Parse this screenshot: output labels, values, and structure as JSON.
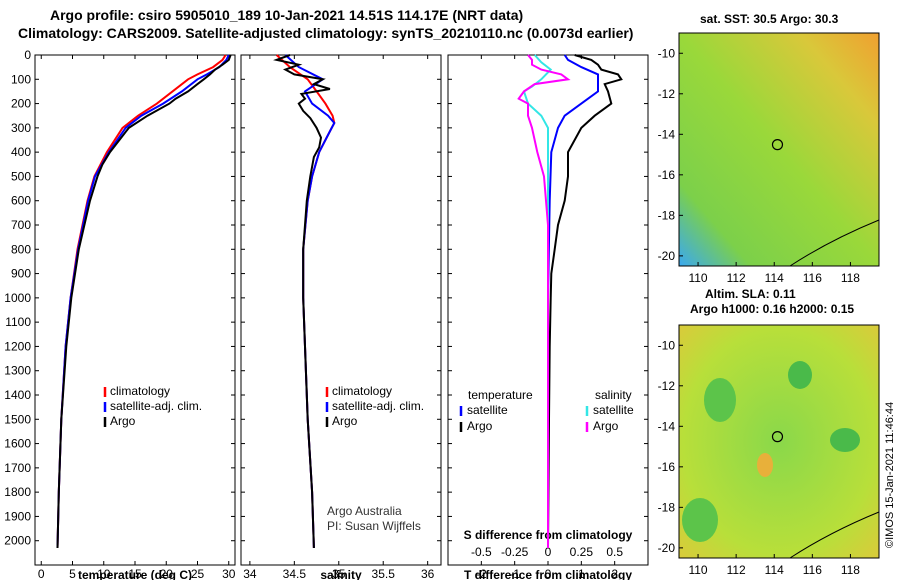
{
  "header": {
    "line1": "Argo profile: csiro 5905010_189 10-Jan-2021 14.51S 114.17E (NRT data)",
    "line2": "Climatology: CARS2009. Satellite-adjusted climatology: synTS_20210110.nc (0.0073d earlier)"
  },
  "maps": {
    "sst_title": "sat. SST: 30.5 Argo: 30.3",
    "sla_title1": "Altim. SLA: 0.11",
    "sla_title2": "Argo h1000: 0.16 h2000: 0.15",
    "lon_ticks": [
      "110",
      "112",
      "114",
      "116",
      "118"
    ],
    "lat_ticks": [
      "-10",
      "-12",
      "-14",
      "-16",
      "-18",
      "-20"
    ],
    "marker_lon": 114.17,
    "marker_lat": -14.51
  },
  "footer": {
    "imos_stamp": "©IMOS 15-Jan-2021 11:46:44"
  },
  "colors": {
    "red": "#ff0000",
    "blue": "#0000ff",
    "black": "#000000",
    "cyan": "#33e6e6",
    "magenta": "#ff00ff"
  },
  "chart_data": [
    {
      "type": "line",
      "xlabel": "temperature (deg C)",
      "ylim": [
        2100,
        0
      ],
      "xlim": [
        -1,
        31
      ],
      "xticks": [
        "0",
        "5",
        "10",
        "15",
        "20",
        "25",
        "30"
      ],
      "yticks": [
        "0",
        "100",
        "200",
        "300",
        "400",
        "500",
        "600",
        "700",
        "800",
        "900",
        "1000",
        "1100",
        "1200",
        "1300",
        "1400",
        "1500",
        "1600",
        "1700",
        "1800",
        "1900",
        "2000"
      ],
      "legend": [
        "climatology",
        "satellite-adj. clim.",
        "Argo"
      ],
      "series": [
        {
          "name": "climatology",
          "color": "red",
          "depth": [
            0,
            20,
            50,
            80,
            100,
            150,
            200,
            250,
            300,
            400,
            500,
            600,
            800,
            1000,
            1200,
            1500,
            1800,
            2030
          ],
          "values": [
            29.5,
            29,
            27.5,
            25,
            23.5,
            21,
            18.5,
            15.5,
            13,
            10.5,
            8.5,
            7.4,
            5.8,
            4.7,
            3.9,
            3.2,
            2.8,
            2.6
          ]
        },
        {
          "name": "satellite-adj. clim.",
          "color": "blue",
          "depth": [
            0,
            20,
            50,
            80,
            100,
            150,
            200,
            250,
            300,
            400,
            500,
            600,
            800,
            1000,
            1200,
            1500,
            1800,
            2030
          ],
          "values": [
            30,
            29.6,
            28.5,
            26.5,
            25,
            22.5,
            19.5,
            16,
            13.5,
            10.8,
            8.6,
            7.5,
            5.9,
            4.7,
            3.9,
            3.2,
            2.8,
            2.6
          ]
        },
        {
          "name": "Argo",
          "color": "black",
          "depth": [
            0,
            20,
            40,
            60,
            80,
            100,
            120,
            150,
            180,
            200,
            250,
            300,
            350,
            400,
            450,
            500,
            600,
            800,
            1000,
            1200,
            1500,
            1800,
            2030
          ],
          "values": [
            30.3,
            30,
            29,
            27.8,
            27,
            26,
            25,
            23.5,
            21.5,
            20.5,
            17,
            14,
            12.5,
            11,
            9.8,
            9,
            7.8,
            6,
            4.8,
            4,
            3.2,
            2.8,
            2.6
          ]
        }
      ]
    },
    {
      "type": "line",
      "xlabel": "salinity",
      "ylim": [
        2100,
        0
      ],
      "xlim": [
        33.9,
        36.15
      ],
      "xticks": [
        "34",
        "34.5",
        "35",
        "35.5",
        "36"
      ],
      "legend": [
        "climatology",
        "satellite-adj. clim.",
        "Argo"
      ],
      "annotations": [
        "Argo Australia",
        "PI: Susan Wijffels"
      ],
      "series": [
        {
          "name": "climatology",
          "color": "red",
          "depth": [
            0,
            50,
            100,
            150,
            200,
            250,
            280,
            300,
            350,
            400,
            500,
            600,
            800,
            1000,
            1200,
            1500,
            1800,
            2030
          ],
          "values": [
            34.3,
            34.45,
            34.65,
            34.75,
            34.85,
            34.93,
            34.95,
            34.92,
            34.85,
            34.78,
            34.7,
            34.65,
            34.6,
            34.6,
            34.62,
            34.65,
            34.7,
            34.72
          ]
        },
        {
          "name": "satellite-adj. clim.",
          "color": "blue",
          "depth": [
            0,
            50,
            100,
            130,
            150,
            200,
            250,
            280,
            300,
            350,
            400,
            500,
            600,
            800,
            1000,
            1200,
            1500,
            1800,
            2030
          ],
          "values": [
            34.4,
            34.55,
            34.82,
            34.7,
            34.62,
            34.7,
            34.88,
            34.95,
            34.92,
            34.85,
            34.78,
            34.7,
            34.65,
            34.6,
            34.6,
            34.62,
            34.65,
            34.7,
            34.72
          ]
        },
        {
          "name": "Argo",
          "color": "black",
          "depth": [
            0,
            20,
            40,
            60,
            80,
            100,
            120,
            140,
            160,
            180,
            200,
            230,
            260,
            300,
            340,
            380,
            420,
            500,
            600,
            800,
            1000,
            1200,
            1500,
            1800,
            2030
          ],
          "values": [
            34.45,
            34.3,
            34.55,
            34.4,
            34.5,
            34.82,
            34.72,
            34.9,
            34.58,
            34.62,
            34.55,
            34.6,
            34.68,
            34.75,
            34.8,
            34.78,
            34.72,
            34.68,
            34.64,
            34.6,
            34.6,
            34.62,
            34.65,
            34.7,
            34.72
          ]
        }
      ]
    },
    {
      "type": "line",
      "xlabel": "T difference from climatology",
      "xlim": [
        -3,
        3
      ],
      "xticks": [
        "-2",
        "-1",
        "0",
        "1",
        "2"
      ],
      "xlabel_top": "S difference from climatology",
      "xlim_top": [
        -0.75,
        0.75
      ],
      "xticks_top": [
        "-0.5",
        "-0.25",
        "0",
        "0.25",
        "0.5"
      ],
      "legend": [
        "temperature",
        "satellite",
        "Argo",
        "salinity",
        "satellite",
        "Argo"
      ],
      "series": [
        {
          "name": "temperature satellite",
          "color": "blue",
          "axis": "T",
          "depth": [
            0,
            20,
            50,
            80,
            100,
            150,
            180,
            200,
            250,
            300,
            400,
            600,
            1000,
            2030
          ],
          "values": [
            0.5,
            0.6,
            1,
            1.5,
            1.5,
            1.5,
            1.2,
            1.0,
            0.5,
            0.3,
            0.1,
            0.05,
            0,
            0
          ]
        },
        {
          "name": "temperature Argo",
          "color": "black",
          "axis": "T",
          "depth": [
            0,
            20,
            40,
            60,
            80,
            100,
            120,
            150,
            200,
            250,
            300,
            400,
            500,
            600,
            700,
            800,
            900,
            1000,
            1200,
            1500,
            2030
          ],
          "values": [
            0.8,
            1.3,
            1.5,
            1.6,
            2.1,
            2.2,
            1.7,
            1.8,
            1.9,
            1.4,
            1.0,
            0.6,
            0.6,
            0.5,
            0.3,
            0.2,
            0.1,
            0.08,
            0.05,
            0.03,
            0
          ]
        },
        {
          "name": "salinity satellite",
          "color": "cyan",
          "axis": "S",
          "depth": [
            0,
            30,
            60,
            100,
            130,
            150,
            200,
            250,
            300,
            400,
            600,
            1000,
            2030
          ],
          "values": [
            -0.1,
            -0.05,
            0.02,
            -0.05,
            -0.12,
            -0.18,
            -0.15,
            -0.05,
            0,
            0,
            0,
            0,
            0
          ]
        },
        {
          "name": "salinity Argo",
          "color": "magenta",
          "axis": "S",
          "depth": [
            0,
            20,
            40,
            60,
            80,
            100,
            120,
            150,
            180,
            200,
            250,
            300,
            400,
            500,
            700,
            1000,
            2030
          ],
          "values": [
            -0.15,
            -0.12,
            -0.12,
            -0.05,
            0.1,
            0.15,
            -0.1,
            -0.18,
            -0.22,
            -0.15,
            -0.15,
            -0.12,
            -0.08,
            -0.03,
            0,
            0,
            0
          ]
        }
      ]
    }
  ]
}
